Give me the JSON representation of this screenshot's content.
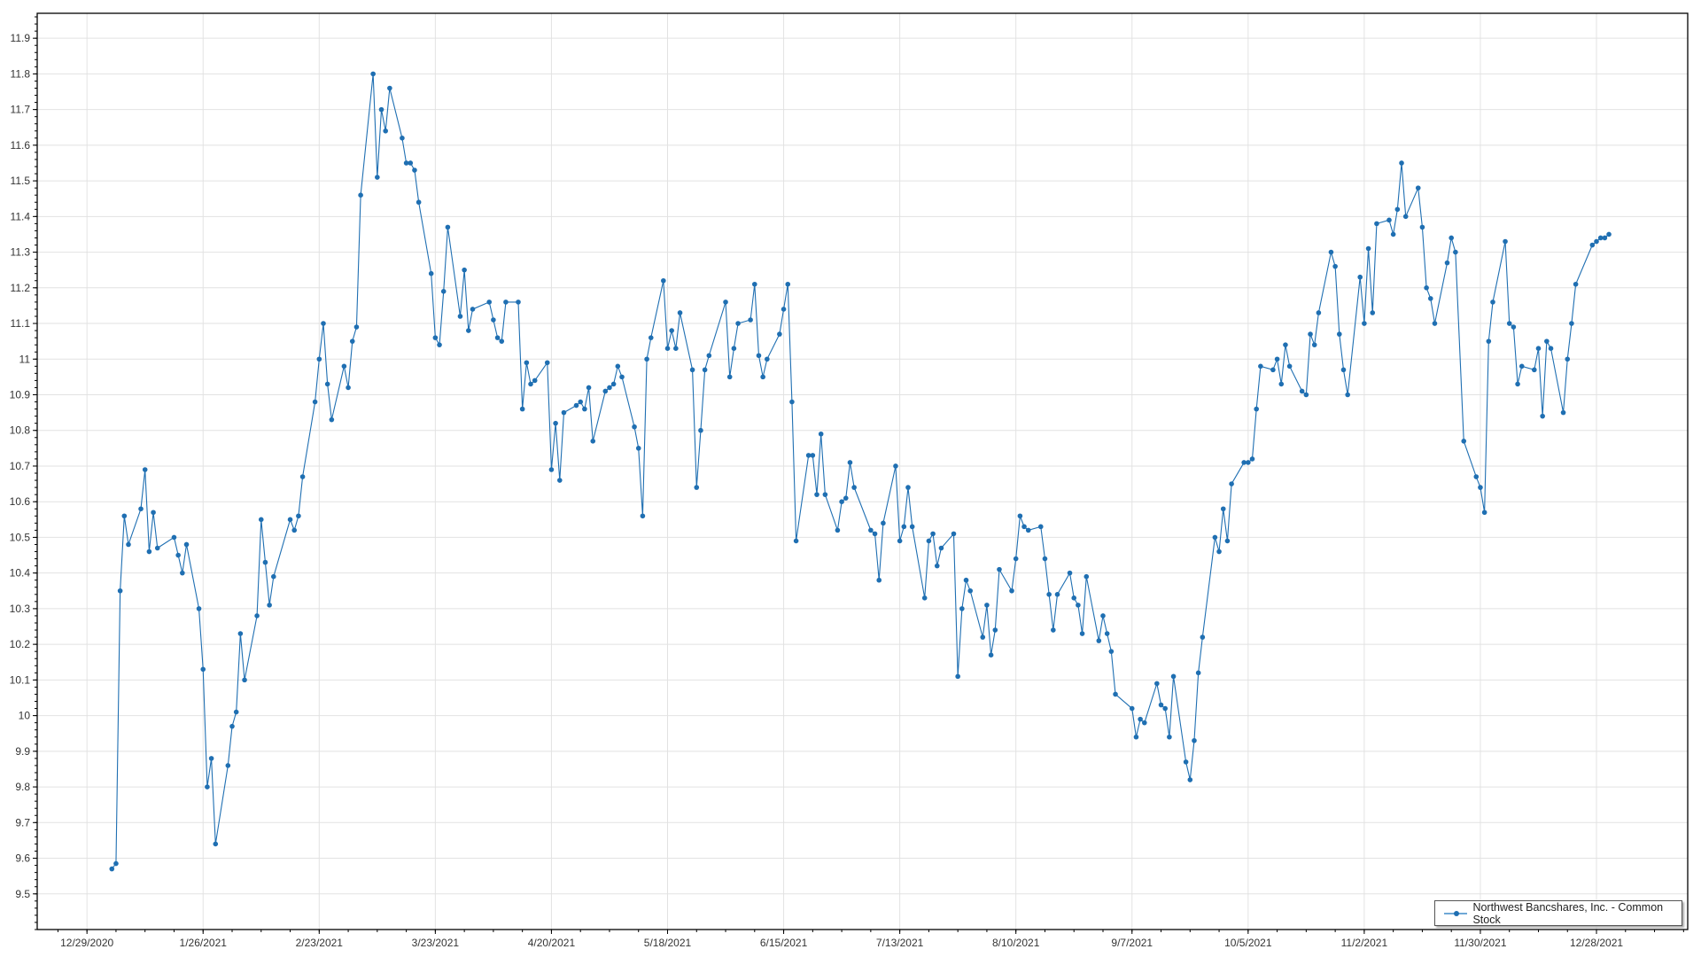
{
  "chart_data": {
    "type": "line",
    "title": "",
    "xlabel": "",
    "ylabel": "",
    "color": "#1f6fb2",
    "grid": true,
    "legend_position": "bottom-right",
    "xlim": [
      "12/17/2020",
      "1/19/2022"
    ],
    "ylim": [
      9.4,
      11.97
    ],
    "x_ticks": [
      "12/29/2020",
      "1/26/2021",
      "2/23/2021",
      "3/23/2021",
      "4/20/2021",
      "5/18/2021",
      "6/15/2021",
      "7/13/2021",
      "8/10/2021",
      "9/7/2021",
      "10/5/2021",
      "11/2/2021",
      "11/30/2021",
      "12/28/2021"
    ],
    "y_ticks": [
      "9.5",
      "9.6",
      "9.7",
      "9.8",
      "9.9",
      "10",
      "10.1",
      "10.2",
      "10.3",
      "10.4",
      "10.5",
      "10.6",
      "10.7",
      "10.8",
      "10.9",
      "11",
      "11.1",
      "11.2",
      "11.3",
      "11.4",
      "11.5",
      "11.6",
      "11.7",
      "11.8",
      "11.9"
    ],
    "series": [
      {
        "name": "Northwest Bancshares, Inc. - Common Stock",
        "x": [
          "1/4/2021",
          "1/5/2021",
          "1/6/2021",
          "1/7/2021",
          "1/8/2021",
          "1/11/2021",
          "1/12/2021",
          "1/13/2021",
          "1/14/2021",
          "1/15/2021",
          "1/19/2021",
          "1/20/2021",
          "1/21/2021",
          "1/22/2021",
          "1/25/2021",
          "1/26/2021",
          "1/27/2021",
          "1/28/2021",
          "1/29/2021",
          "2/1/2021",
          "2/2/2021",
          "2/3/2021",
          "2/4/2021",
          "2/5/2021",
          "2/8/2021",
          "2/9/2021",
          "2/10/2021",
          "2/11/2021",
          "2/12/2021",
          "2/16/2021",
          "2/17/2021",
          "2/18/2021",
          "2/19/2021",
          "2/22/2021",
          "2/23/2021",
          "2/24/2021",
          "2/25/2021",
          "2/26/2021",
          "3/1/2021",
          "3/2/2021",
          "3/3/2021",
          "3/4/2021",
          "3/5/2021",
          "3/8/2021",
          "3/9/2021",
          "3/10/2021",
          "3/11/2021",
          "3/12/2021",
          "3/15/2021",
          "3/16/2021",
          "3/17/2021",
          "3/18/2021",
          "3/19/2021",
          "3/22/2021",
          "3/23/2021",
          "3/24/2021",
          "3/25/2021",
          "3/26/2021",
          "3/29/2021",
          "3/30/2021",
          "3/31/2021",
          "4/1/2021",
          "4/5/2021",
          "4/6/2021",
          "4/7/2021",
          "4/8/2021",
          "4/9/2021",
          "4/12/2021",
          "4/13/2021",
          "4/14/2021",
          "4/15/2021",
          "4/16/2021",
          "4/19/2021",
          "4/20/2021",
          "4/21/2021",
          "4/22/2021",
          "4/23/2021",
          "4/26/2021",
          "4/27/2021",
          "4/28/2021",
          "4/29/2021",
          "4/30/2021",
          "5/3/2021",
          "5/4/2021",
          "5/5/2021",
          "5/6/2021",
          "5/7/2021",
          "5/10/2021",
          "5/11/2021",
          "5/12/2021",
          "5/13/2021",
          "5/14/2021",
          "5/17/2021",
          "5/18/2021",
          "5/19/2021",
          "5/20/2021",
          "5/21/2021",
          "5/24/2021",
          "5/25/2021",
          "5/26/2021",
          "5/27/2021",
          "5/28/2021",
          "6/1/2021",
          "6/2/2021",
          "6/3/2021",
          "6/4/2021",
          "6/7/2021",
          "6/8/2021",
          "6/9/2021",
          "6/10/2021",
          "6/11/2021",
          "6/14/2021",
          "6/15/2021",
          "6/16/2021",
          "6/17/2021",
          "6/18/2021",
          "6/21/2021",
          "6/22/2021",
          "6/23/2021",
          "6/24/2021",
          "6/25/2021",
          "6/28/2021",
          "6/29/2021",
          "6/30/2021",
          "7/1/2021",
          "7/2/2021",
          "7/6/2021",
          "7/7/2021",
          "7/8/2021",
          "7/9/2021",
          "7/12/2021",
          "7/13/2021",
          "7/14/2021",
          "7/15/2021",
          "7/16/2021",
          "7/19/2021",
          "7/20/2021",
          "7/21/2021",
          "7/22/2021",
          "7/23/2021",
          "7/26/2021",
          "7/27/2021",
          "7/28/2021",
          "7/29/2021",
          "7/30/2021",
          "8/2/2021",
          "8/3/2021",
          "8/4/2021",
          "8/5/2021",
          "8/6/2021",
          "8/9/2021",
          "8/10/2021",
          "8/11/2021",
          "8/12/2021",
          "8/13/2021",
          "8/16/2021",
          "8/17/2021",
          "8/18/2021",
          "8/19/2021",
          "8/20/2021",
          "8/23/2021",
          "8/24/2021",
          "8/25/2021",
          "8/26/2021",
          "8/27/2021",
          "8/30/2021",
          "8/31/2021",
          "9/1/2021",
          "9/2/2021",
          "9/3/2021",
          "9/7/2021",
          "9/8/2021",
          "9/9/2021",
          "9/10/2021",
          "9/13/2021",
          "9/14/2021",
          "9/15/2021",
          "9/16/2021",
          "9/17/2021",
          "9/20/2021",
          "9/21/2021",
          "9/22/2021",
          "9/23/2021",
          "9/24/2021",
          "9/27/2021",
          "9/28/2021",
          "9/29/2021",
          "9/30/2021",
          "10/1/2021",
          "10/4/2021",
          "10/5/2021",
          "10/6/2021",
          "10/7/2021",
          "10/8/2021",
          "10/11/2021",
          "10/12/2021",
          "10/13/2021",
          "10/14/2021",
          "10/15/2021",
          "10/18/2021",
          "10/19/2021",
          "10/20/2021",
          "10/21/2021",
          "10/22/2021",
          "10/25/2021",
          "10/26/2021",
          "10/27/2021",
          "10/28/2021",
          "10/29/2021",
          "11/1/2021",
          "11/2/2021",
          "11/3/2021",
          "11/4/2021",
          "11/5/2021",
          "11/8/2021",
          "11/9/2021",
          "11/10/2021",
          "11/11/2021",
          "11/12/2021",
          "11/15/2021",
          "11/16/2021",
          "11/17/2021",
          "11/18/2021",
          "11/19/2021",
          "11/22/2021",
          "11/23/2021",
          "11/24/2021",
          "11/26/2021",
          "11/29/2021",
          "11/30/2021",
          "12/1/2021",
          "12/2/2021",
          "12/3/2021",
          "12/6/2021",
          "12/7/2021",
          "12/8/2021",
          "12/9/2021",
          "12/10/2021",
          "12/13/2021",
          "12/14/2021",
          "12/15/2021",
          "12/16/2021",
          "12/17/2021",
          "12/20/2021",
          "12/21/2021",
          "12/22/2021",
          "12/23/2021",
          "12/27/2021",
          "12/28/2021",
          "12/29/2021",
          "12/30/2021",
          "12/31/2021"
        ],
        "y": [
          9.57,
          9.585,
          10.35,
          10.56,
          10.48,
          10.58,
          10.69,
          10.46,
          10.57,
          10.47,
          10.5,
          10.45,
          10.4,
          10.48,
          10.3,
          10.13,
          9.8,
          9.88,
          9.64,
          9.86,
          9.97,
          10.01,
          10.23,
          10.1,
          10.28,
          10.55,
          10.43,
          10.31,
          10.39,
          10.55,
          10.52,
          10.56,
          10.67,
          10.88,
          11.0,
          11.1,
          10.93,
          10.83,
          10.98,
          10.92,
          11.05,
          11.09,
          11.46,
          11.8,
          11.51,
          11.7,
          11.64,
          11.76,
          11.62,
          11.55,
          11.55,
          11.53,
          11.44,
          11.24,
          11.06,
          11.04,
          11.19,
          11.37,
          11.12,
          11.25,
          11.08,
          11.14,
          11.16,
          11.11,
          11.06,
          11.05,
          11.16,
          11.16,
          10.86,
          10.99,
          10.93,
          10.94,
          10.99,
          10.69,
          10.82,
          10.66,
          10.85,
          10.87,
          10.88,
          10.86,
          10.92,
          10.77,
          10.91,
          10.92,
          10.93,
          10.98,
          10.95,
          10.81,
          10.75,
          10.56,
          11.0,
          11.06,
          11.22,
          11.03,
          11.08,
          11.03,
          11.13,
          10.97,
          10.64,
          10.8,
          10.97,
          11.01,
          11.16,
          10.95,
          11.03,
          11.1,
          11.11,
          11.21,
          11.01,
          10.95,
          11.0,
          11.07,
          11.14,
          11.21,
          10.88,
          10.49,
          10.73,
          10.73,
          10.62,
          10.79,
          10.62,
          10.52,
          10.6,
          10.61,
          10.71,
          10.64,
          10.52,
          10.51,
          10.38,
          10.54,
          10.7,
          10.49,
          10.53,
          10.64,
          10.53,
          10.33,
          10.49,
          10.51,
          10.42,
          10.47,
          10.51,
          10.11,
          10.3,
          10.38,
          10.35,
          10.22,
          10.31,
          10.17,
          10.24,
          10.41,
          10.35,
          10.44,
          10.56,
          10.53,
          10.52,
          10.53,
          10.44,
          10.34,
          10.24,
          10.34,
          10.4,
          10.33,
          10.31,
          10.23,
          10.39,
          10.21,
          10.28,
          10.23,
          10.18,
          10.06,
          10.02,
          9.94,
          9.99,
          9.98,
          10.09,
          10.03,
          10.02,
          9.94,
          10.11,
          9.87,
          9.82,
          9.93,
          10.12,
          10.22,
          10.5,
          10.46,
          10.58,
          10.49,
          10.65,
          10.71,
          10.71,
          10.72,
          10.86,
          10.98,
          10.97,
          11.0,
          10.93,
          11.04,
          10.98,
          10.91,
          10.9,
          11.07,
          11.04,
          11.13,
          11.3,
          11.26,
          11.07,
          10.97,
          10.9,
          11.23,
          11.1,
          11.31,
          11.13,
          11.38,
          11.39,
          11.35,
          11.42,
          11.55,
          11.4,
          11.48,
          11.37,
          11.2,
          11.17,
          11.1,
          11.27,
          11.34,
          11.3,
          10.77,
          10.67,
          10.64,
          10.57,
          11.05,
          11.16,
          11.33,
          11.1,
          11.09,
          10.93,
          10.98,
          10.97,
          11.03,
          10.84,
          11.05,
          11.03,
          10.85,
          11.0,
          11.1,
          11.21,
          11.32,
          11.33,
          11.34,
          11.34,
          11.35
        ]
      }
    ]
  }
}
